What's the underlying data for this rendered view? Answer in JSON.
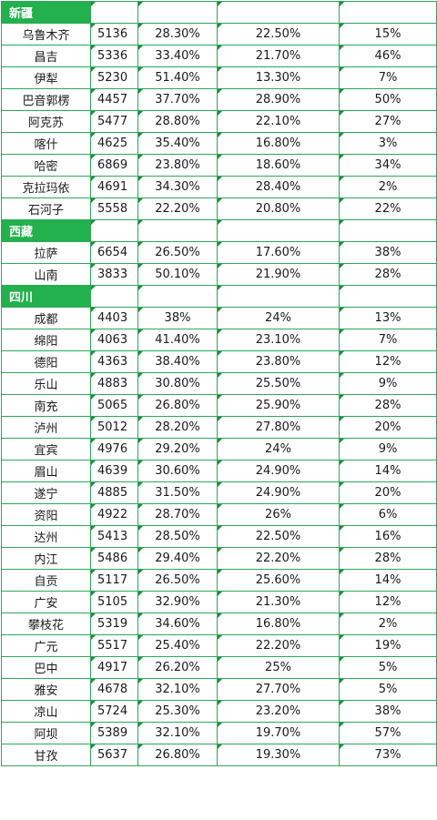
{
  "sections": [
    {
      "name": "新疆",
      "rows": [
        [
          "乌鲁木齐",
          "5136",
          "28.30%",
          "22.50%",
          "15%"
        ],
        [
          "昌吉",
          "5336",
          "33.40%",
          "21.70%",
          "46%"
        ],
        [
          "伊犁",
          "5230",
          "51.40%",
          "13.30%",
          "7%"
        ],
        [
          "巴音郭楞",
          "4457",
          "37.70%",
          "28.90%",
          "50%"
        ],
        [
          "阿克苏",
          "5477",
          "28.80%",
          "22.10%",
          "27%"
        ],
        [
          "喀什",
          "4625",
          "35.40%",
          "16.80%",
          "3%"
        ],
        [
          "哈密",
          "6869",
          "23.80%",
          "18.60%",
          "34%"
        ],
        [
          "克拉玛依",
          "4691",
          "34.30%",
          "28.40%",
          "2%"
        ],
        [
          "石河子",
          "5558",
          "22.20%",
          "20.80%",
          "22%"
        ]
      ]
    },
    {
      "name": "西藏",
      "rows": [
        [
          "拉萨",
          "6654",
          "26.50%",
          "17.60%",
          "38%"
        ],
        [
          "山南",
          "3833",
          "50.10%",
          "21.90%",
          "28%"
        ]
      ]
    },
    {
      "name": "四川",
      "rows": [
        [
          "成都",
          "4403",
          "38%",
          "24%",
          "13%"
        ],
        [
          "绵阳",
          "4063",
          "41.40%",
          "23.10%",
          "7%"
        ],
        [
          "德阳",
          "4363",
          "38.40%",
          "23.80%",
          "12%"
        ],
        [
          "乐山",
          "4883",
          "30.80%",
          "25.50%",
          "9%"
        ],
        [
          "南充",
          "5065",
          "26.80%",
          "25.90%",
          "28%"
        ],
        [
          "泸州",
          "5012",
          "28.20%",
          "27.80%",
          "20%"
        ],
        [
          "宜宾",
          "4976",
          "29.20%",
          "24%",
          "9%"
        ],
        [
          "眉山",
          "4639",
          "30.60%",
          "24.90%",
          "14%"
        ],
        [
          "遂宁",
          "4885",
          "31.50%",
          "24.90%",
          "20%"
        ],
        [
          "资阳",
          "4922",
          "28.70%",
          "26%",
          "6%"
        ],
        [
          "达州",
          "5413",
          "28.50%",
          "22.50%",
          "16%"
        ],
        [
          "内江",
          "5486",
          "29.40%",
          "22.20%",
          "28%"
        ],
        [
          "自贡",
          "5117",
          "26.50%",
          "25.60%",
          "14%"
        ],
        [
          "广安",
          "5105",
          "32.90%",
          "21.30%",
          "12%"
        ],
        [
          "攀枝花",
          "5319",
          "34.60%",
          "16.80%",
          "2%"
        ],
        [
          "广元",
          "5517",
          "25.40%",
          "22.20%",
          "19%"
        ],
        [
          "巴中",
          "4917",
          "26.20%",
          "25%",
          "5%"
        ],
        [
          "雅安",
          "4678",
          "32.10%",
          "27.70%",
          "5%"
        ],
        [
          "凉山",
          "5724",
          "25.30%",
          "23.20%",
          "38%"
        ],
        [
          "阿坝",
          "5389",
          "32.10%",
          "19.70%",
          "57%"
        ],
        [
          "甘孜",
          "5637",
          "26.80%",
          "19.30%",
          "73%"
        ]
      ]
    }
  ],
  "colors": {
    "section_fill": "#22b14c",
    "grid": "#2ea85a",
    "marker": "#1e8f3e"
  }
}
